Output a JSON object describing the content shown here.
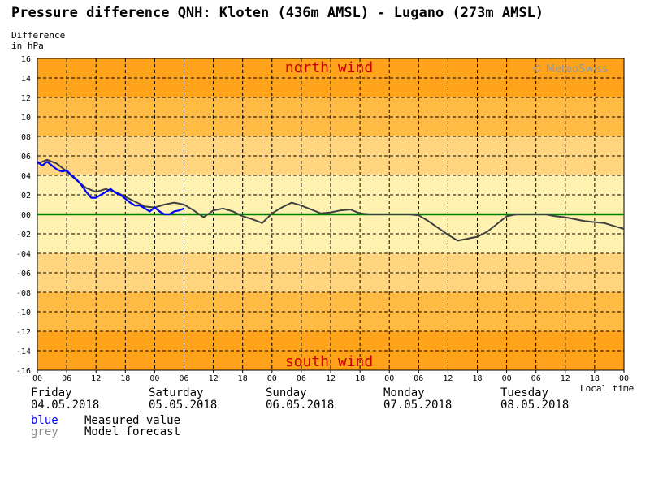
{
  "title": "Pressure difference QNH: Kloten (436m AMSL) - Lugano (273m AMSL)",
  "ylabel_line1": "Difference",
  "ylabel_line2": "in hPa",
  "copyright": "© MeteoSwiss",
  "north_label": "north wind",
  "south_label": "south wind",
  "local_time_label": "Local time",
  "days": [
    {
      "name": "Friday",
      "date": "04.05.2018"
    },
    {
      "name": "Saturday",
      "date": "05.05.2018"
    },
    {
      "name": "Sunday",
      "date": "06.05.2018"
    },
    {
      "name": "Monday",
      "date": "07.05.2018"
    },
    {
      "name": "Tuesday",
      "date": "08.05.2018"
    }
  ],
  "legend": [
    {
      "key": "blue",
      "text": "Measured value",
      "color": "#0000ff"
    },
    {
      "key": "grey",
      "text": "Model forecast",
      "color": "#888888"
    }
  ],
  "colors": {
    "band_outer": "#ffa31a",
    "band_mid1": "#ffbb44",
    "band_mid2": "#ffd580",
    "band_inner": "#fff2b0",
    "zero_line": "#008000",
    "label_red": "#cc0000",
    "measured": "#0000ff",
    "forecast": "#404040"
  },
  "chart_data": {
    "type": "line",
    "title": "Pressure difference QNH: Kloten (436m AMSL) - Lugano (273m AMSL)",
    "ylabel": "Difference in hPa",
    "xlabel": "Local time",
    "ylim": [
      -16,
      16
    ],
    "yticks": [
      "16",
      "14",
      "12",
      "10",
      "08",
      "06",
      "04",
      "02",
      "00",
      "-02",
      "-04",
      "-06",
      "-08",
      "-10",
      "-12",
      "-14",
      "-16"
    ],
    "xlim_hours": [
      0,
      120
    ],
    "xticks": [
      "00",
      "06",
      "12",
      "18",
      "00",
      "06",
      "12",
      "18",
      "00",
      "06",
      "12",
      "18",
      "00",
      "06",
      "12",
      "18",
      "00",
      "06",
      "12",
      "18",
      "00"
    ],
    "grid": true,
    "series": [
      {
        "name": "Measured value",
        "hours": [
          0,
          1,
          2,
          3,
          4,
          5,
          6,
          7,
          8,
          9,
          10,
          11,
          12,
          13,
          14,
          15,
          16,
          17,
          18,
          19,
          20,
          21,
          22,
          23,
          24,
          25,
          26,
          27,
          28,
          29,
          30
        ],
        "values": [
          5.4,
          5.0,
          5.4,
          5.0,
          4.6,
          4.4,
          4.5,
          4.0,
          3.6,
          3.0,
          2.3,
          1.7,
          1.7,
          2.0,
          2.3,
          2.6,
          2.2,
          2.0,
          1.6,
          1.2,
          0.9,
          0.9,
          0.6,
          0.3,
          0.7,
          0.3,
          0.0,
          0.0,
          0.3,
          0.4,
          0.6
        ]
      },
      {
        "name": "Model forecast",
        "hours": [
          0,
          2,
          4,
          6,
          8,
          10,
          12,
          14,
          16,
          18,
          20,
          22,
          24,
          26,
          28,
          30,
          32,
          34,
          36,
          38,
          40,
          42,
          44,
          46,
          48,
          50,
          52,
          54,
          56,
          58,
          60,
          62,
          64,
          66,
          68,
          70,
          72,
          74,
          76,
          78,
          80,
          82,
          84,
          86,
          88,
          90,
          92,
          94,
          96,
          98,
          100,
          102,
          104,
          106,
          108,
          110,
          112,
          114,
          116,
          118,
          120
        ],
        "values": [
          5.2,
          5.6,
          5.2,
          4.4,
          3.5,
          2.7,
          2.3,
          2.6,
          2.3,
          1.8,
          1.3,
          0.8,
          0.7,
          1.0,
          1.2,
          1.0,
          0.4,
          -0.3,
          0.4,
          0.6,
          0.3,
          -0.2,
          -0.5,
          -0.9,
          0.1,
          0.7,
          1.2,
          0.9,
          0.5,
          0.1,
          0.2,
          0.4,
          0.5,
          0.1,
          0.0,
          0.0,
          0.0,
          0.0,
          0.0,
          -0.1,
          -0.7,
          -1.4,
          -2.1,
          -2.7,
          -2.5,
          -2.3,
          -1.8,
          -1.0,
          -0.2,
          0.0,
          0.0,
          0.0,
          0.0,
          -0.2,
          -0.3,
          -0.5,
          -0.7,
          -0.8,
          -0.9,
          -1.2,
          -1.5
        ]
      }
    ]
  }
}
